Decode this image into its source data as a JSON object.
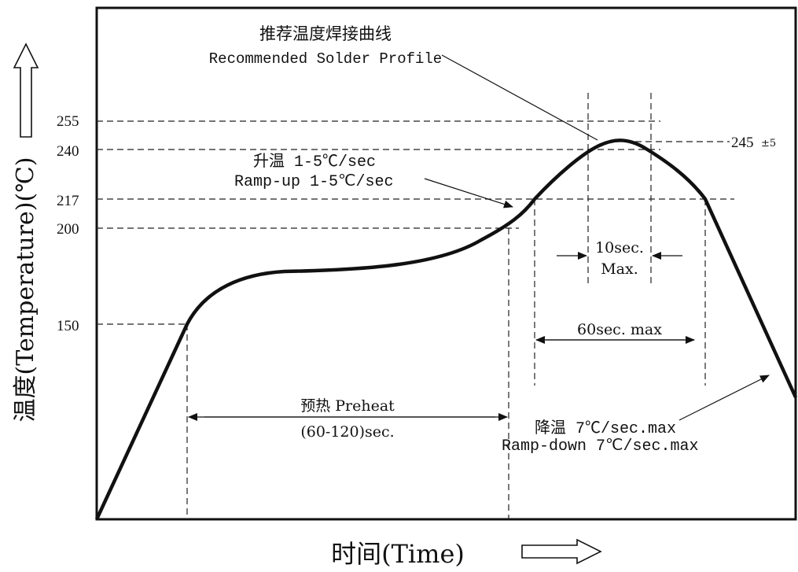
{
  "title_cn": "推荐温度焊接曲线",
  "title_en": "Recommended Solder Profile",
  "y_axis_label": "温度(Temperature)(℃)",
  "x_axis_label": "时间(Time)",
  "y_ticks": [
    "255",
    "240",
    "217",
    "200",
    "150"
  ],
  "peak_label": "245",
  "peak_tolerance": "±5",
  "ramp_up_cn": "升温 1-5℃/sec",
  "ramp_up_en": "Ramp-up 1-5℃/sec",
  "preheat_label": "预热 Preheat",
  "preheat_range": "(60-120)sec.",
  "window_10_line1": "10sec.",
  "window_10_line2": "Max.",
  "window_60": "60sec. max",
  "ramp_down_cn": "降温 7℃/sec.max",
  "ramp_down_en": "Ramp-down 7℃/sec.max",
  "colors": {
    "line": "#111111",
    "background": "#ffffff"
  }
}
